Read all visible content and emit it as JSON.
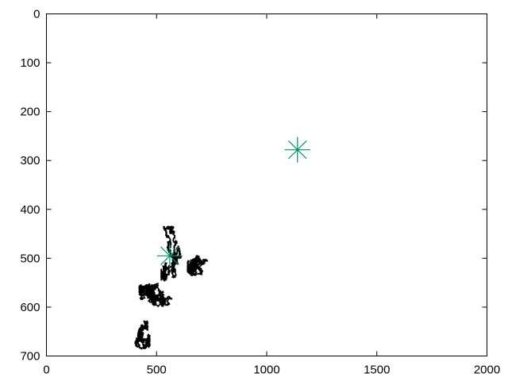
{
  "chart_data": {
    "type": "scatter",
    "title": "",
    "xlabel": "",
    "ylabel": "",
    "xlim": [
      0,
      2000
    ],
    "ylim": [
      0,
      700
    ],
    "y_inverted": true,
    "grid": false,
    "x_ticks": [
      0,
      500,
      1000,
      1500,
      2000
    ],
    "y_ticks": [
      0,
      100,
      200,
      300,
      400,
      500,
      600,
      700
    ],
    "x_tick_labels": [
      "0",
      "500",
      "1000",
      "1500",
      "2000"
    ],
    "y_tick_labels": [
      "0",
      "100",
      "200",
      "300",
      "400",
      "500",
      "600",
      "700"
    ],
    "series": [
      {
        "marker": "star",
        "color": "#008b6b",
        "points": [
          [
            1140,
            278
          ],
          [
            560,
            495
          ]
        ]
      }
    ],
    "trajectory": {
      "color": "#000000",
      "regions": [
        {
          "x": [
            345,
            470
          ],
          "y": [
            628,
            700
          ]
        },
        {
          "x": [
            420,
            640
          ],
          "y": [
            520,
            620
          ]
        },
        {
          "x": [
            520,
            660
          ],
          "y": [
            435,
            560
          ]
        },
        {
          "x": [
            640,
            825
          ],
          "y": [
            462,
            548
          ]
        }
      ]
    }
  }
}
